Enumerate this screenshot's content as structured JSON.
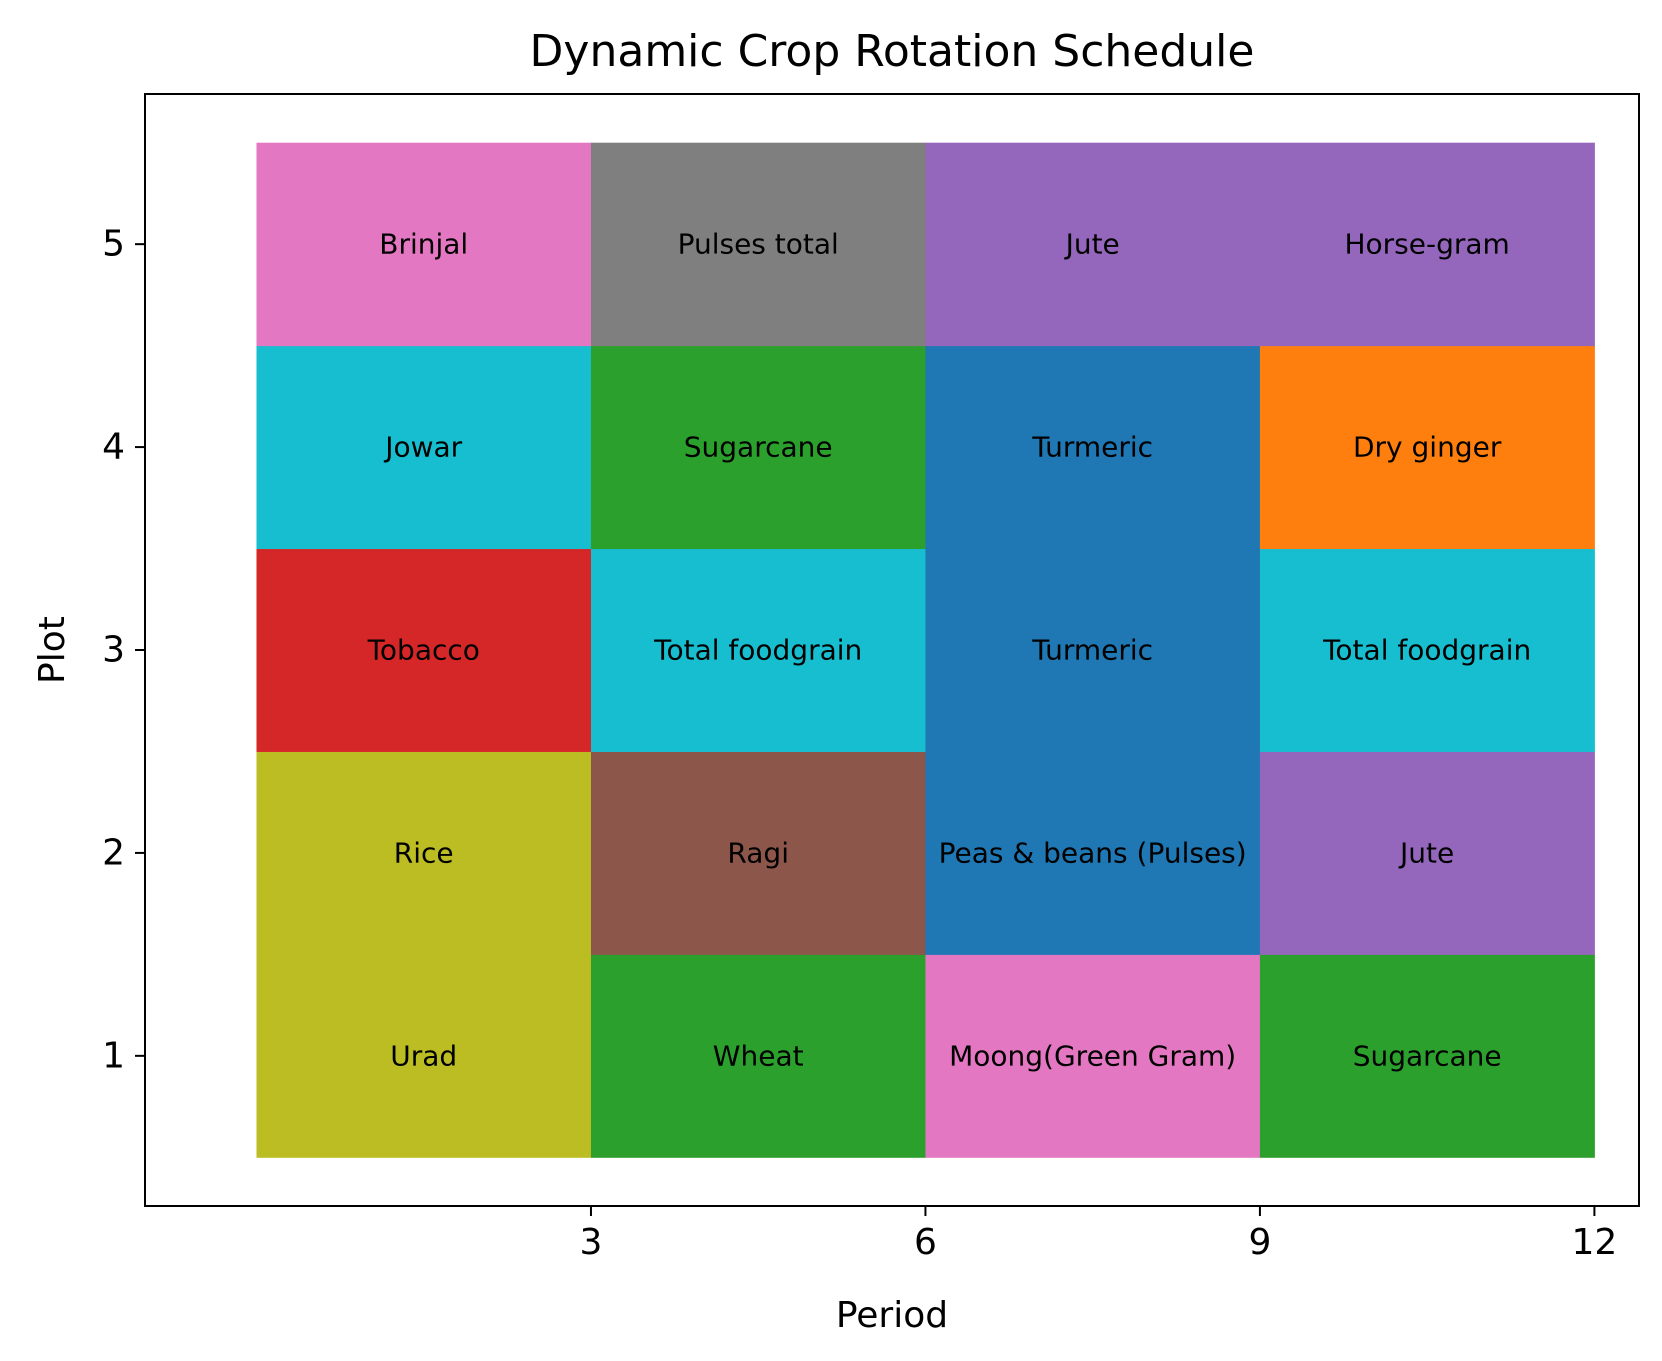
{
  "chart_data": {
    "type": "heatmap",
    "title": "Dynamic Crop Rotation Schedule",
    "xlabel": "Period",
    "ylabel": "Plot",
    "xlim": [
      -1,
      12.4
    ],
    "ylim": [
      0.26,
      5.74
    ],
    "xticks": [
      3,
      6,
      9,
      12
    ],
    "yticks": [
      1,
      2,
      3,
      4,
      5
    ],
    "grid": false,
    "period_ranges": [
      [
        0,
        3
      ],
      [
        3,
        6
      ],
      [
        6,
        9
      ],
      [
        9,
        12
      ]
    ],
    "plots": [
      1,
      2,
      3,
      4,
      5
    ],
    "cells": [
      {
        "plot": 1,
        "start": 0,
        "end": 3,
        "crop": "Urad",
        "color": "#bcbd22"
      },
      {
        "plot": 1,
        "start": 3,
        "end": 6,
        "crop": "Wheat",
        "color": "#2ca02c"
      },
      {
        "plot": 1,
        "start": 6,
        "end": 9,
        "crop": "Moong(Green Gram)",
        "color": "#e377c2"
      },
      {
        "plot": 1,
        "start": 9,
        "end": 12,
        "crop": "Sugarcane",
        "color": "#2ca02c"
      },
      {
        "plot": 2,
        "start": 0,
        "end": 3,
        "crop": "Rice",
        "color": "#bcbd22"
      },
      {
        "plot": 2,
        "start": 3,
        "end": 6,
        "crop": "Ragi",
        "color": "#8c564b"
      },
      {
        "plot": 2,
        "start": 6,
        "end": 9,
        "crop": "Peas & beans (Pulses)",
        "color": "#1f77b4"
      },
      {
        "plot": 2,
        "start": 9,
        "end": 12,
        "crop": "Jute",
        "color": "#9467bd"
      },
      {
        "plot": 3,
        "start": 0,
        "end": 3,
        "crop": "Tobacco",
        "color": "#d62728"
      },
      {
        "plot": 3,
        "start": 3,
        "end": 6,
        "crop": "Total foodgrain",
        "color": "#17becf"
      },
      {
        "plot": 3,
        "start": 6,
        "end": 9,
        "crop": "Turmeric",
        "color": "#1f77b4"
      },
      {
        "plot": 3,
        "start": 9,
        "end": 12,
        "crop": "Total foodgrain",
        "color": "#17becf"
      },
      {
        "plot": 4,
        "start": 0,
        "end": 3,
        "crop": "Jowar",
        "color": "#17becf"
      },
      {
        "plot": 4,
        "start": 3,
        "end": 6,
        "crop": "Sugarcane",
        "color": "#2ca02c"
      },
      {
        "plot": 4,
        "start": 6,
        "end": 9,
        "crop": "Turmeric",
        "color": "#1f77b4"
      },
      {
        "plot": 4,
        "start": 9,
        "end": 12,
        "crop": "Dry ginger",
        "color": "#ff7f0e"
      },
      {
        "plot": 5,
        "start": 0,
        "end": 3,
        "crop": "Brinjal",
        "color": "#e377c2"
      },
      {
        "plot": 5,
        "start": 3,
        "end": 6,
        "crop": "Pulses total",
        "color": "#7f7f7f"
      },
      {
        "plot": 5,
        "start": 6,
        "end": 9,
        "crop": "Jute",
        "color": "#9467bd"
      },
      {
        "plot": 5,
        "start": 9,
        "end": 12,
        "crop": "Horse-gram",
        "color": "#9467bd"
      }
    ]
  }
}
